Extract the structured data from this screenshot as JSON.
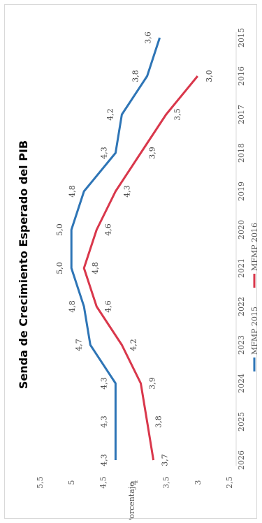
{
  "chart_data": {
    "type": "line",
    "title": "Senda de Crecimiento Esperado del PIB",
    "xlabel": "",
    "ylabel": "Porcentaje",
    "categories": [
      "2015",
      "2016",
      "2017",
      "2018",
      "2019",
      "2020",
      "2021",
      "2022",
      "2023",
      "2024",
      "2025",
      "2026"
    ],
    "yticks": [
      "2,5",
      "3",
      "3,5",
      "4",
      "4,5",
      "5",
      "5,5"
    ],
    "ylim": [
      2.5,
      5.5
    ],
    "grid": false,
    "legend_position": "bottom",
    "orientation": "rotated-90-counterclockwise",
    "series": [
      {
        "name": "MFMP 2015",
        "color": "#2e75b6",
        "values": [
          3.6,
          3.8,
          4.2,
          4.3,
          4.8,
          5.0,
          5.0,
          4.8,
          4.7,
          4.3,
          4.3,
          4.3
        ],
        "labels": [
          "3,6",
          "3,8",
          "4,2",
          "4,3",
          "4,8",
          "5,0",
          "5,0",
          "4,8",
          "4,7",
          "4,3",
          "4,3",
          "4,3"
        ]
      },
      {
        "name": "MFMP 2016",
        "color": "#d9374b",
        "values": [
          null,
          3.0,
          3.5,
          3.9,
          4.3,
          4.6,
          4.8,
          4.6,
          4.2,
          3.9,
          3.8,
          3.7
        ],
        "labels": [
          null,
          "3,0",
          "3,5",
          "3,9",
          "4,3",
          "4,6",
          "4,8",
          "4,6",
          "4,2",
          "3,9",
          "3,8",
          "3,7"
        ]
      }
    ]
  }
}
